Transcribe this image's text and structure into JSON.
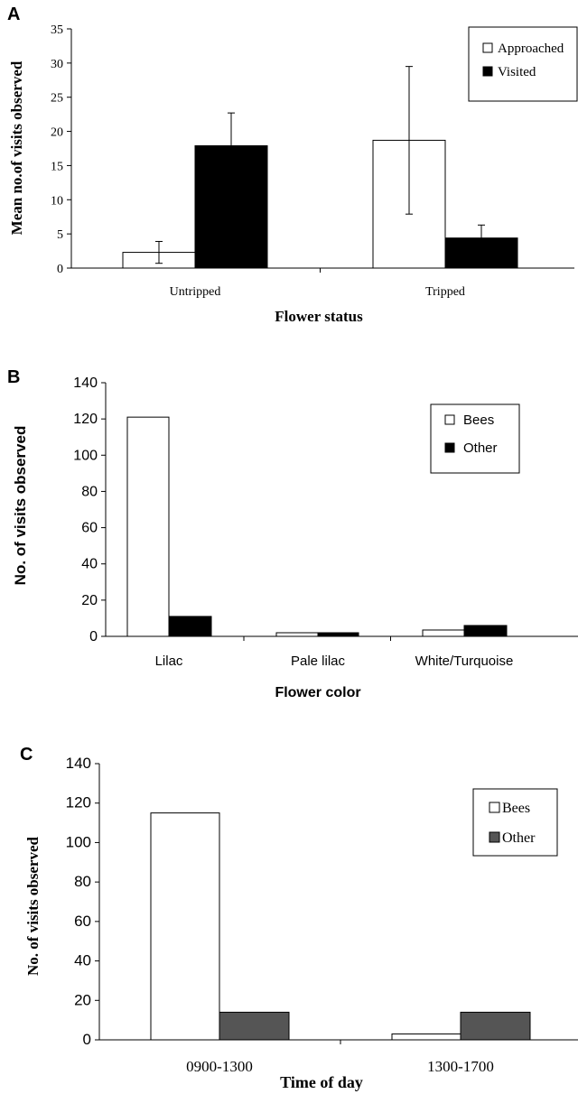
{
  "chart_data": [
    {
      "type": "bar",
      "panel": "A",
      "title": "",
      "xlabel": "Flower status",
      "ylabel": "Mean no.of visits observed",
      "ylim": [
        0,
        35
      ],
      "yticks": [
        0,
        5,
        10,
        15,
        20,
        25,
        30,
        35
      ],
      "categories": [
        "Untripped",
        "Tripped"
      ],
      "series": [
        {
          "name": "Approached",
          "color": "#ffffff",
          "values": [
            2.3,
            18.7
          ],
          "errors": [
            1.6,
            10.8
          ]
        },
        {
          "name": "Visited",
          "color": "#000000",
          "values": [
            17.9,
            4.4
          ],
          "errors": [
            4.8,
            1.9
          ]
        }
      ],
      "legend": "top-right",
      "grid": false
    },
    {
      "type": "bar",
      "panel": "B",
      "title": "",
      "xlabel": "Flower color",
      "ylabel": "No. of visits observed",
      "ylim": [
        0,
        140
      ],
      "yticks": [
        0,
        20,
        40,
        60,
        80,
        100,
        120,
        140
      ],
      "categories": [
        "Lilac",
        "Pale lilac",
        "White/Turquoise"
      ],
      "series": [
        {
          "name": "Bees",
          "color": "#ffffff",
          "values": [
            121,
            2,
            3.5
          ]
        },
        {
          "name": "Other",
          "color": "#000000",
          "values": [
            11,
            2,
            6
          ]
        }
      ],
      "legend": "top-right",
      "grid": false
    },
    {
      "type": "bar",
      "panel": "C",
      "title": "",
      "xlabel": "Time of day",
      "ylabel": "No. of visits observed",
      "ylim": [
        0,
        140
      ],
      "yticks": [
        0,
        20,
        40,
        60,
        80,
        100,
        120,
        140
      ],
      "categories": [
        "0900-1300",
        "1300-1700"
      ],
      "series": [
        {
          "name": "Bees",
          "color": "#ffffff",
          "values": [
            115,
            3
          ]
        },
        {
          "name": "Other",
          "color": "#555555",
          "values": [
            14,
            14
          ]
        }
      ],
      "legend": "top-right",
      "grid": false
    }
  ]
}
